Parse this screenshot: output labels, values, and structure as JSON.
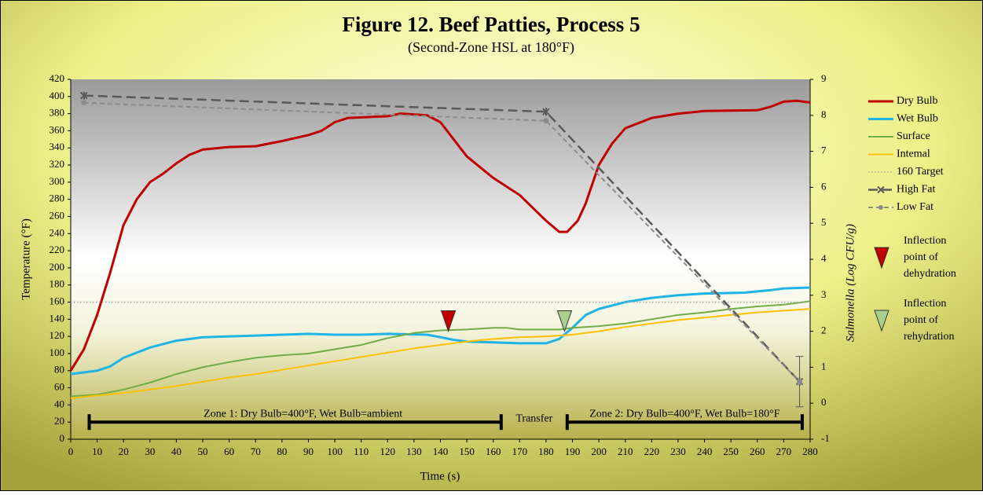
{
  "chart_data": {
    "type": "line",
    "title": "Figure 12. Beef Patties, Process 5",
    "subtitle": "(Second-Zone HSL at 180°F)",
    "x_label": "Time (s)",
    "y_label": "Temperature (°F)",
    "y2_label": "Salmonella (Log CFU/g)",
    "xlim": [
      0,
      280
    ],
    "xticks": [
      0,
      10,
      20,
      30,
      40,
      50,
      60,
      70,
      80,
      90,
      100,
      110,
      120,
      130,
      140,
      150,
      160,
      170,
      180,
      190,
      200,
      210,
      220,
      230,
      240,
      250,
      260,
      270,
      280
    ],
    "ylim": [
      0,
      420
    ],
    "yticks": [
      0,
      20,
      40,
      60,
      80,
      100,
      120,
      140,
      160,
      180,
      200,
      220,
      240,
      260,
      280,
      300,
      320,
      340,
      360,
      380,
      400,
      420
    ],
    "y2lim": [
      -1,
      9
    ],
    "y2ticks": [
      -1,
      0,
      1,
      2,
      3,
      4,
      5,
      6,
      7,
      8,
      9
    ],
    "series": [
      {
        "name": "Dry Bulb",
        "color": "#c00000",
        "width": 3,
        "dash": "none",
        "x": [
          0,
          5,
          10,
          15,
          20,
          25,
          30,
          35,
          40,
          45,
          50,
          60,
          70,
          80,
          90,
          95,
          100,
          105,
          120,
          125,
          135,
          140,
          145,
          150,
          160,
          170,
          175,
          180,
          185,
          188,
          192,
          195,
          200,
          205,
          210,
          220,
          230,
          240,
          260,
          265,
          270,
          275,
          280
        ],
        "values": [
          80,
          105,
          145,
          195,
          250,
          280,
          300,
          310,
          322,
          332,
          338,
          341,
          342,
          348,
          355,
          360,
          370,
          375,
          377,
          380,
          378,
          370,
          350,
          330,
          305,
          285,
          270,
          255,
          242,
          242,
          255,
          275,
          320,
          345,
          363,
          375,
          380,
          383,
          384,
          388,
          394,
          395,
          393
        ]
      },
      {
        "name": "Wet Bulb",
        "color": "#1eb4e6",
        "width": 3,
        "dash": "none",
        "x": [
          0,
          10,
          15,
          20,
          30,
          40,
          50,
          60,
          70,
          80,
          90,
          100,
          110,
          120,
          135,
          140,
          145,
          150,
          160,
          170,
          180,
          185,
          190,
          195,
          200,
          210,
          220,
          230,
          240,
          255,
          265,
          270,
          280
        ],
        "values": [
          76,
          80,
          85,
          95,
          107,
          115,
          119,
          120,
          121,
          122,
          123,
          122,
          122,
          123,
          122,
          119,
          116,
          114,
          113,
          112,
          112,
          117,
          130,
          145,
          152,
          160,
          165,
          168,
          170,
          171,
          174,
          176,
          177
        ]
      },
      {
        "name": "Surface",
        "color": "#70ad47",
        "width": 2,
        "dash": "none",
        "x": [
          0,
          10,
          20,
          30,
          40,
          50,
          60,
          70,
          80,
          90,
          100,
          110,
          120,
          130,
          140,
          150,
          160,
          165,
          170,
          185,
          190,
          200,
          210,
          220,
          230,
          240,
          250,
          260,
          270,
          280
        ],
        "values": [
          50,
          52,
          58,
          66,
          76,
          84,
          90,
          95,
          98,
          100,
          105,
          110,
          118,
          124,
          127,
          128,
          130,
          130,
          128,
          128,
          130,
          132,
          135,
          140,
          145,
          148,
          152,
          155,
          157,
          161
        ]
      },
      {
        "name": "Intemal",
        "color": "#ffc000",
        "width": 2,
        "dash": "none",
        "x": [
          0,
          10,
          20,
          30,
          40,
          50,
          60,
          70,
          80,
          90,
          100,
          110,
          120,
          130,
          140,
          150,
          160,
          170,
          180,
          190,
          200,
          210,
          220,
          230,
          240,
          250,
          260,
          270,
          280
        ],
        "values": [
          48,
          51,
          54,
          58,
          62,
          67,
          72,
          76,
          81,
          86,
          91,
          96,
          101,
          106,
          110,
          114,
          117,
          119,
          120,
          122,
          126,
          131,
          135,
          139,
          142,
          145,
          148,
          150,
          152
        ]
      },
      {
        "name": "160 Target",
        "color": "#a0a0a0",
        "width": 1.5,
        "dash": "1.5 2.5",
        "x": [
          0,
          280
        ],
        "values": [
          160,
          160
        ]
      },
      {
        "name": "High Fat",
        "color": "#5a5a5a",
        "width": 2.5,
        "dash": "12 6",
        "axis": "y2",
        "marker": "x",
        "x": [
          5,
          180,
          276
        ],
        "values": [
          8.55,
          8.1,
          0.6
        ],
        "errors": [
          null,
          null,
          0.7
        ]
      },
      {
        "name": "Low Fat",
        "color": "#8c8c8c",
        "width": 2,
        "dash": "6 4",
        "axis": "y2",
        "marker": "circle",
        "x": [
          5,
          180,
          276
        ],
        "values": [
          8.35,
          7.85,
          0.6
        ]
      }
    ],
    "markers": [
      {
        "label_lines": [
          "Inflection",
          "point of",
          "dehydration"
        ],
        "color": "#c00000",
        "x": 143,
        "y": 138
      },
      {
        "label_lines": [
          "Inflection",
          "point of",
          "rehydration"
        ],
        "color": "#a9d18e",
        "x": 187,
        "y": 138
      }
    ],
    "zones": [
      {
        "label": "Zone 1: Dry Bulb=400°F, Wet Bulb=ambient",
        "start": 7,
        "end": 163,
        "level": 20
      },
      {
        "label": "Zone 2: Dry Bulb=400°F, Wet Bulb=180°F",
        "start": 188,
        "end": 277,
        "level": 20
      }
    ],
    "transfer": "Transfer"
  }
}
